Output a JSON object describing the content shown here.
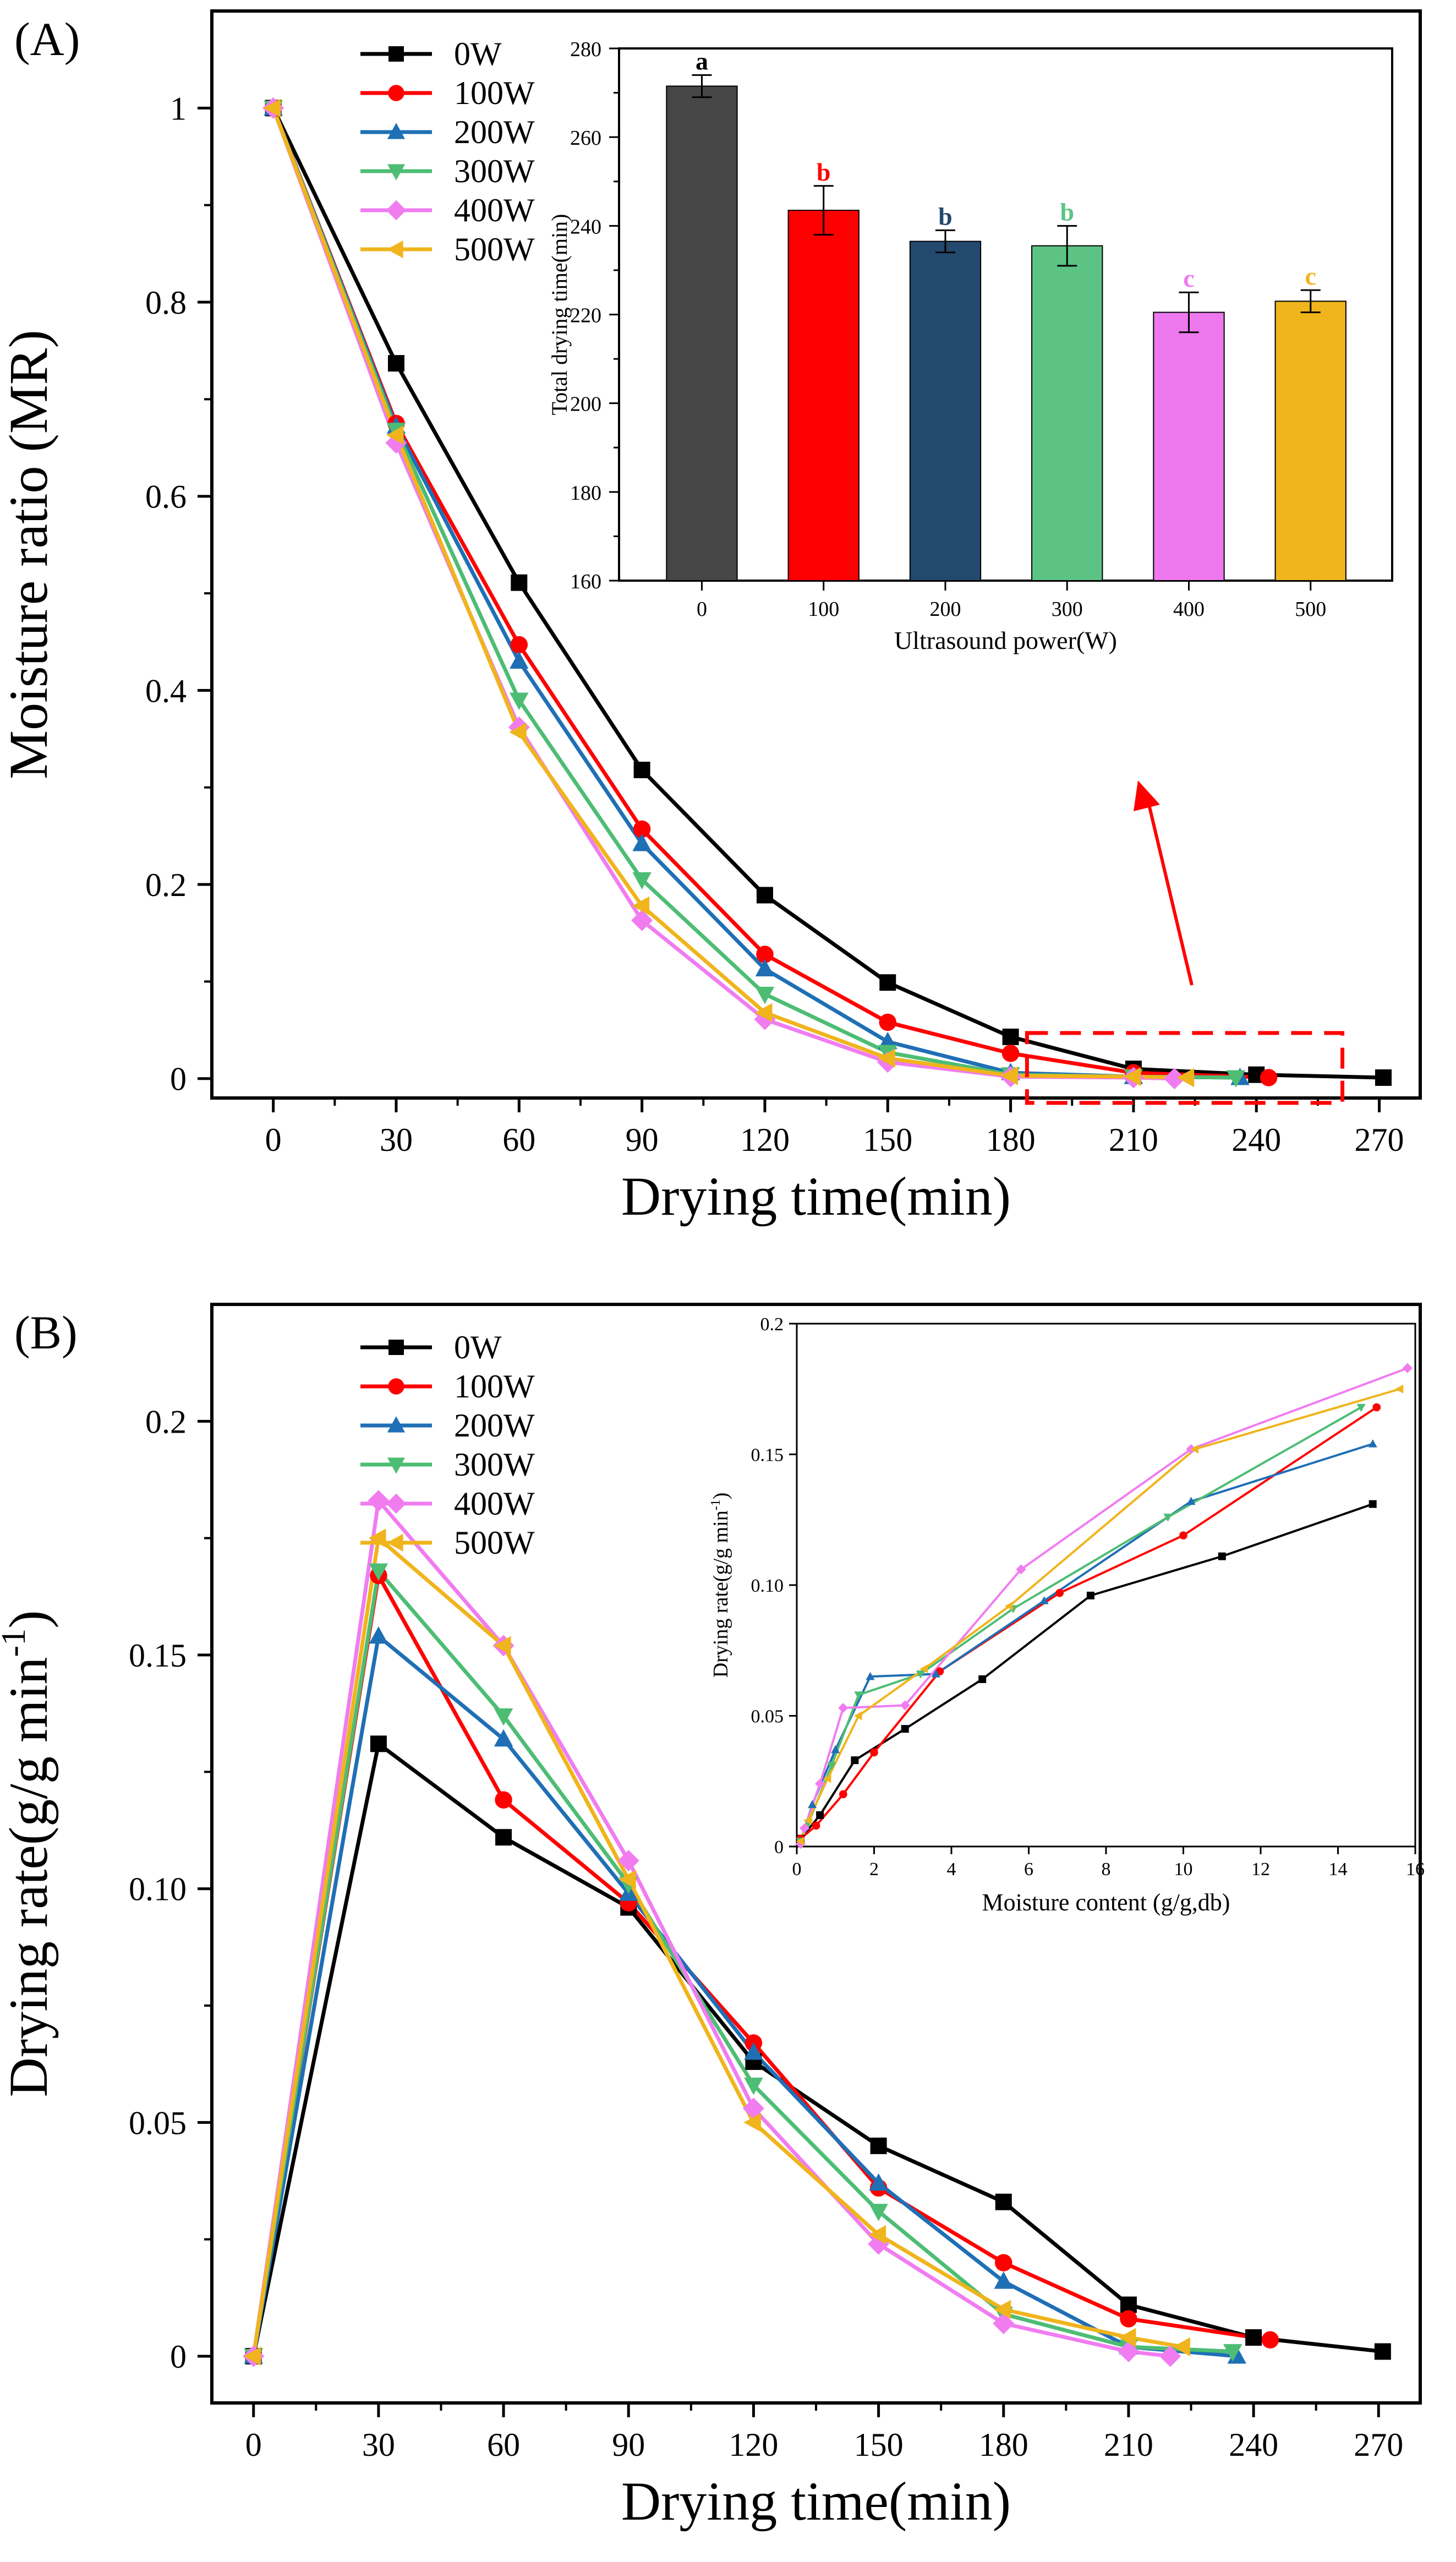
{
  "chart_data": [
    {
      "id": "A",
      "panel_label": "(A)",
      "type": "line",
      "xlabel": "Drying time(min)",
      "ylabel": "Moisture ratio (MR)",
      "xlim": [
        -15,
        280
      ],
      "ylim": [
        -0.02,
        1.1
      ],
      "xticks": [
        0,
        30,
        60,
        90,
        120,
        150,
        180,
        210,
        240,
        270
      ],
      "yticks": [
        0,
        0.2,
        0.4,
        0.6,
        0.8,
        1
      ],
      "ytick_labels": [
        "0",
        "0.2",
        "0.4",
        "0.6",
        "0.8",
        "1"
      ],
      "legend_position": "top-left",
      "series": [
        {
          "name": "0W",
          "color": "#000000",
          "marker": "square",
          "x": [
            0,
            30,
            60,
            90,
            120,
            150,
            180,
            210,
            240,
            271
          ],
          "y": [
            1.0,
            0.737,
            0.511,
            0.318,
            0.189,
            0.099,
            0.043,
            0.01,
            0.004,
            0.001
          ]
        },
        {
          "name": "100W",
          "color": "#ff0000",
          "marker": "circle",
          "x": [
            0,
            30,
            60,
            90,
            120,
            150,
            180,
            210,
            243
          ],
          "y": [
            1.0,
            0.675,
            0.447,
            0.257,
            0.128,
            0.058,
            0.026,
            0.006,
            0.001
          ]
        },
        {
          "name": "200W",
          "color": "#1f6fb5",
          "marker": "triangle-up",
          "x": [
            0,
            30,
            60,
            90,
            120,
            150,
            180,
            210,
            236
          ],
          "y": [
            1.0,
            0.672,
            0.43,
            0.242,
            0.113,
            0.038,
            0.006,
            0.002,
            0.001
          ]
        },
        {
          "name": "300W",
          "color": "#4dbd74",
          "marker": "triangle-down",
          "x": [
            0,
            30,
            60,
            90,
            120,
            150,
            180,
            210,
            235
          ],
          "y": [
            1.0,
            0.668,
            0.39,
            0.205,
            0.087,
            0.027,
            0.004,
            0.002,
            0.001
          ]
        },
        {
          "name": "400W",
          "color": "#f07cf0",
          "marker": "diamond",
          "x": [
            0,
            30,
            60,
            90,
            120,
            150,
            180,
            210,
            220
          ],
          "y": [
            1.0,
            0.655,
            0.362,
            0.163,
            0.061,
            0.017,
            0.002,
            0.001,
            0.0
          ]
        },
        {
          "name": "500W",
          "color": "#f0b41c",
          "marker": "triangle-left",
          "x": [
            0,
            30,
            60,
            90,
            120,
            150,
            180,
            210,
            223
          ],
          "y": [
            1.0,
            0.663,
            0.357,
            0.178,
            0.068,
            0.021,
            0.003,
            0.002,
            0.001
          ]
        }
      ],
      "annotation": {
        "type": "dashed-rectangle",
        "color": "#ff0000",
        "x_range": [
          184,
          261
        ],
        "y_range": [
          -0.025,
          0.047
        ],
        "arrow_color": "#ff0000"
      },
      "inset": {
        "type": "bar",
        "xlabel": "Ultrasound power(W)",
        "ylabel": "Total drying time(min)",
        "categories": [
          "0",
          "100",
          "200",
          "300",
          "400",
          "500"
        ],
        "values": [
          271.5,
          243.5,
          236.5,
          235.5,
          220.5,
          223.0
        ],
        "errors": [
          2.5,
          5.5,
          2.5,
          4.5,
          4.5,
          2.5
        ],
        "letters": [
          "a",
          "b",
          "b",
          "b",
          "c",
          "c"
        ],
        "colors": [
          "#474747",
          "#ff0000",
          "#24496e",
          "#5cc385",
          "#ee78ee",
          "#f0b41c"
        ],
        "ylim": [
          160,
          280
        ],
        "yticks": [
          160,
          180,
          200,
          220,
          240,
          260,
          280
        ]
      }
    },
    {
      "id": "B",
      "panel_label": "(B)",
      "type": "line",
      "xlabel": "Drying time(min)",
      "ylabel": "Drying rate(g/g min",
      "ylabel_sup": "-1",
      "ylabel_tail": ")",
      "xlim": [
        -10,
        280
      ],
      "ylim": [
        -0.01,
        0.225
      ],
      "xticks": [
        0,
        30,
        60,
        90,
        120,
        150,
        180,
        210,
        240,
        270
      ],
      "yticks": [
        0,
        0.05,
        0.1,
        0.15,
        0.2
      ],
      "ytick_labels": [
        "0",
        "0.05",
        "0.10",
        "0.15",
        "0.2"
      ],
      "legend_position": "top-left",
      "series": [
        {
          "name": "0W",
          "color": "#000000",
          "marker": "square",
          "x": [
            0,
            30,
            60,
            90,
            120,
            150,
            180,
            210,
            240,
            271
          ],
          "y": [
            0.0,
            0.131,
            0.111,
            0.096,
            0.063,
            0.045,
            0.033,
            0.011,
            0.004,
            0.001
          ]
        },
        {
          "name": "100W",
          "color": "#ff0000",
          "marker": "circle",
          "x": [
            0,
            30,
            60,
            90,
            120,
            150,
            180,
            210,
            244
          ],
          "y": [
            0.0,
            0.167,
            0.119,
            0.097,
            0.067,
            0.036,
            0.02,
            0.008,
            0.0035
          ]
        },
        {
          "name": "200W",
          "color": "#1f6fb5",
          "marker": "triangle-up",
          "x": [
            0,
            30,
            60,
            90,
            120,
            150,
            180,
            210,
            236
          ],
          "y": [
            0.0,
            0.154,
            0.132,
            0.099,
            0.065,
            0.037,
            0.016,
            0.002,
            0.0
          ]
        },
        {
          "name": "300W",
          "color": "#4dbd74",
          "marker": "triangle-down",
          "x": [
            0,
            30,
            60,
            90,
            120,
            150,
            180,
            210,
            235
          ],
          "y": [
            0.0,
            0.168,
            0.137,
            0.101,
            0.058,
            0.031,
            0.009,
            0.002,
            0.001
          ]
        },
        {
          "name": "400W",
          "color": "#f07cf0",
          "marker": "diamond",
          "x": [
            0,
            30,
            60,
            90,
            120,
            150,
            180,
            210,
            220
          ],
          "y": [
            0.0,
            0.183,
            0.152,
            0.106,
            0.053,
            0.024,
            0.007,
            0.001,
            0.0
          ]
        },
        {
          "name": "500W",
          "color": "#f0b41c",
          "marker": "triangle-left",
          "x": [
            0,
            30,
            60,
            90,
            120,
            150,
            180,
            210,
            223
          ],
          "y": [
            0.0,
            0.175,
            0.152,
            0.102,
            0.05,
            0.026,
            0.01,
            0.004,
            0.002
          ]
        }
      ],
      "inset": {
        "type": "line",
        "xlabel": "Moisture content (g/g,db)",
        "ylabel": "Drying rate(g/g min",
        "ylabel_sup": "-1",
        "ylabel_tail": ")",
        "xlim": [
          0,
          16
        ],
        "ylim": [
          0,
          0.2
        ],
        "xticks": [
          0,
          2,
          4,
          6,
          8,
          10,
          12,
          14,
          16
        ],
        "yticks": [
          0,
          0.05,
          0.1,
          0.15,
          0.2
        ],
        "ytick_labels": [
          "0",
          "0.05",
          "0.10",
          "0.15",
          "0.2"
        ],
        "series": [
          {
            "name": "0W",
            "x": [
              0.1,
              0.6,
              1.5,
              2.8,
              4.8,
              7.6,
              11.0,
              14.9
            ],
            "y": [
              0.003,
              0.012,
              0.033,
              0.045,
              0.064,
              0.096,
              0.111,
              0.131
            ]
          },
          {
            "name": "100W",
            "x": [
              0.1,
              0.5,
              1.2,
              2.0,
              3.7,
              6.8,
              10.0,
              15.0
            ],
            "y": [
              0.003,
              0.008,
              0.02,
              0.036,
              0.067,
              0.097,
              0.119,
              0.168
            ]
          },
          {
            "name": "200W",
            "x": [
              0.1,
              0.4,
              1.0,
              1.9,
              3.6,
              6.4,
              10.2,
              14.9
            ],
            "y": [
              0.002,
              0.016,
              0.037,
              0.065,
              0.066,
              0.094,
              0.132,
              0.154
            ]
          },
          {
            "name": "300W",
            "x": [
              0.1,
              0.3,
              0.9,
              1.6,
              3.2,
              5.6,
              9.6,
              14.6
            ],
            "y": [
              0.002,
              0.009,
              0.031,
              0.058,
              0.066,
              0.091,
              0.126,
              0.168
            ]
          },
          {
            "name": "400W",
            "x": [
              0.1,
              0.2,
              0.6,
              1.2,
              2.8,
              5.8,
              10.2,
              15.8
            ],
            "y": [
              0.001,
              0.007,
              0.024,
              0.053,
              0.054,
              0.106,
              0.152,
              0.183
            ]
          },
          {
            "name": "500W",
            "x": [
              0.1,
              0.3,
              0.8,
              1.6,
              3.3,
              5.5,
              10.3,
              15.6
            ],
            "y": [
              0.002,
              0.01,
              0.026,
              0.05,
              0.068,
              0.092,
              0.152,
              0.175
            ]
          }
        ]
      }
    }
  ]
}
